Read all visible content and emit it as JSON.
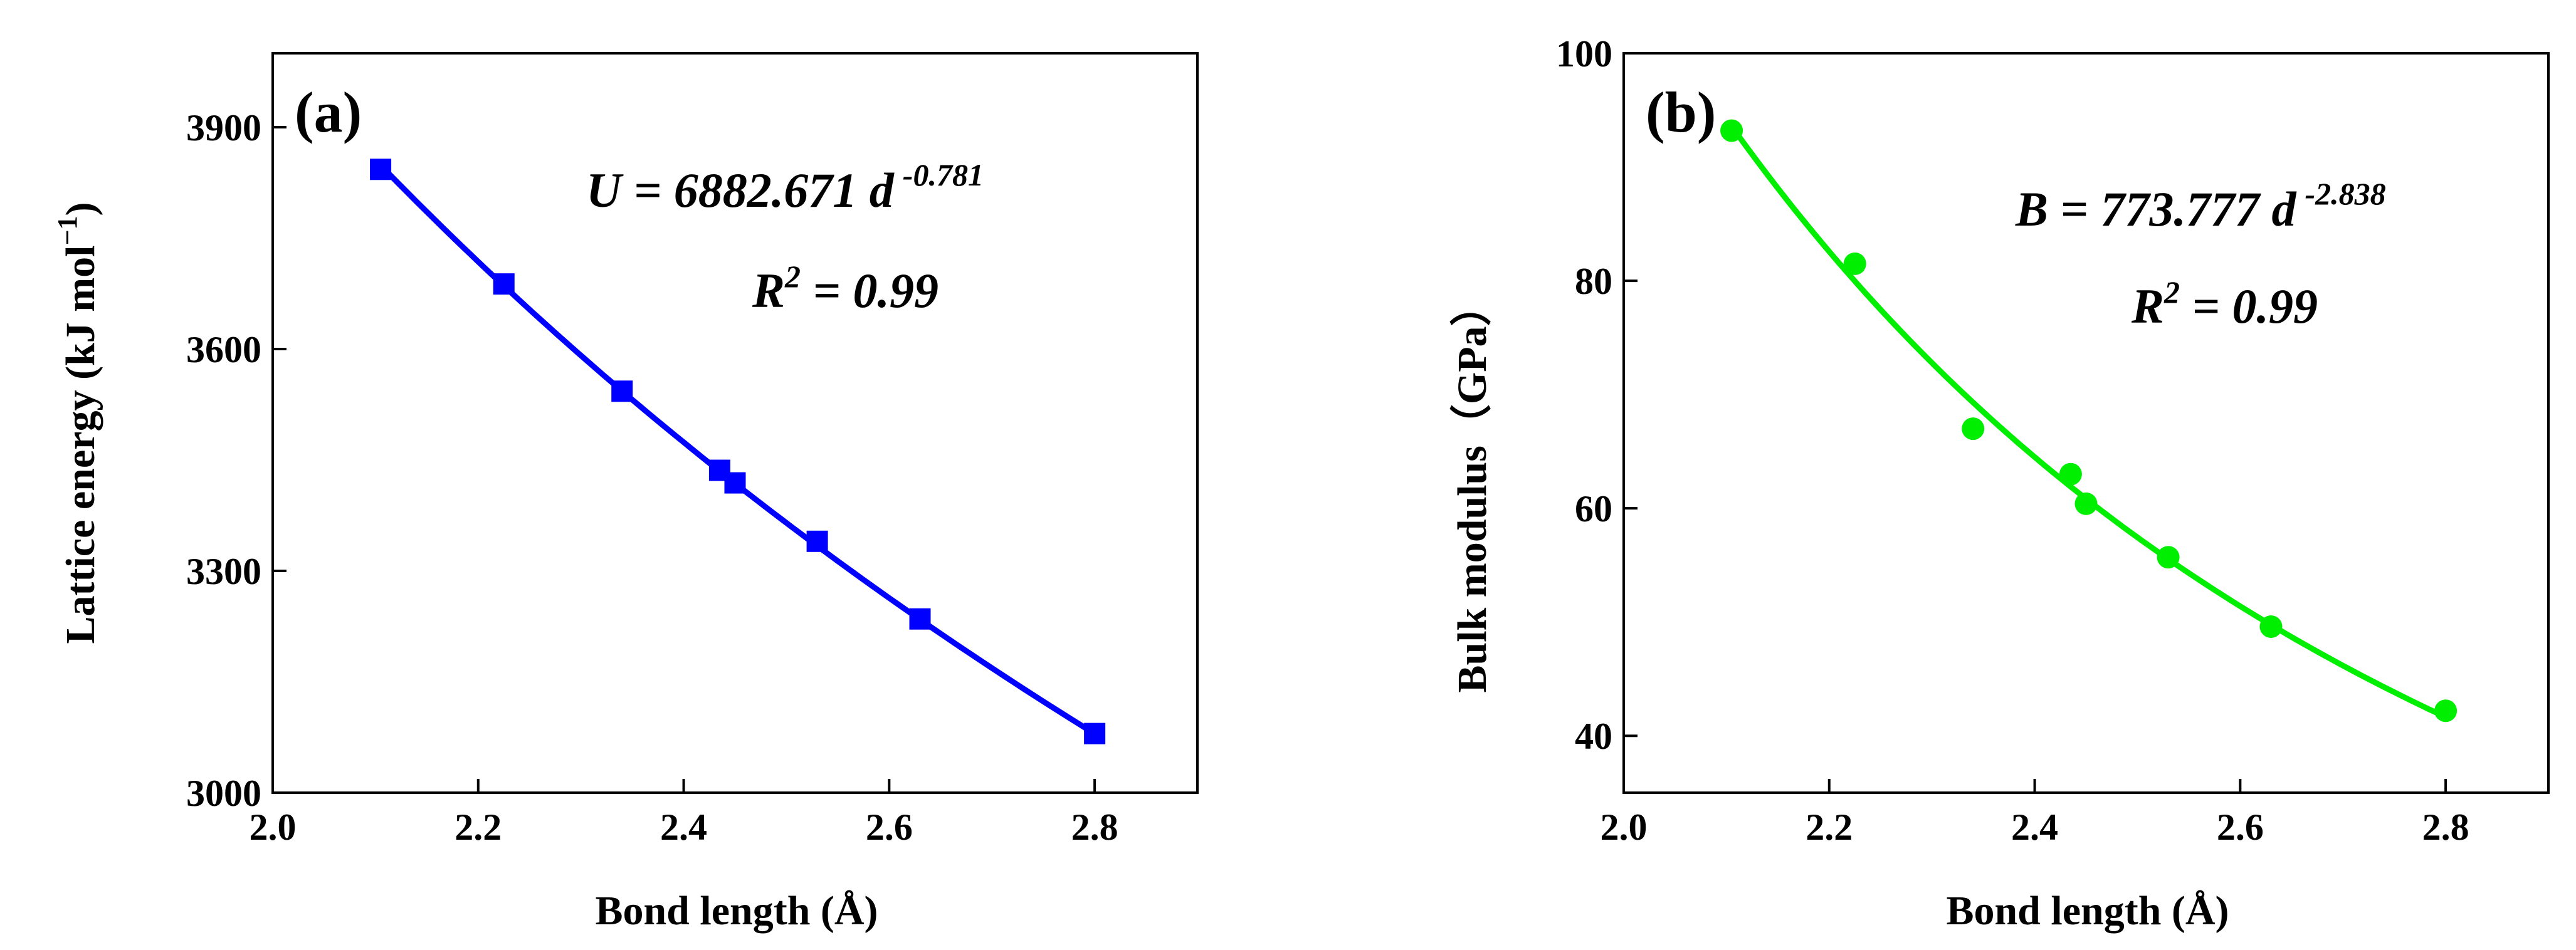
{
  "chart_data": [
    {
      "type": "line",
      "panel": "(a)",
      "title": "",
      "xlabel": "Bond length (Å)",
      "ylabel_main": "Lattice energy (kJ mol",
      "ylabel_sup": "−1",
      "ylabel_close": ")",
      "xlim": [
        2.0,
        2.9
      ],
      "ylim": [
        3000,
        4000
      ],
      "xticks": [
        2.0,
        2.2,
        2.4,
        2.6,
        2.8
      ],
      "xtick_labels": [
        "2.0",
        "2.2",
        "2.4",
        "2.6",
        "2.8"
      ],
      "yticks": [
        3000,
        3300,
        3600,
        3900
      ],
      "ytick_labels": [
        "3000",
        "3300",
        "3600",
        "3900"
      ],
      "color": "#0000ff",
      "marker": "square",
      "fit": {
        "a": 6882.671,
        "b": -0.781,
        "x_range": [
          2.105,
          2.8
        ]
      },
      "equation": {
        "lhs": "U",
        "rest": " = 6882.671 d",
        "exp": "-0.781"
      },
      "r2": {
        "lhs": "R",
        "sup": "2",
        "rest": " = 0.99"
      },
      "series": [
        {
          "name": "Lattice energy",
          "x": [
            2.105,
            2.225,
            2.34,
            2.435,
            2.45,
            2.53,
            2.63,
            2.8
          ],
          "y": [
            3843,
            3688,
            3543,
            3436,
            3419,
            3340,
            3235,
            3080
          ]
        }
      ]
    },
    {
      "type": "line",
      "panel": "(b)",
      "title": "",
      "xlabel": "Bond length (Å)",
      "ylabel": "Bulk modulus（GPa）",
      "xlim": [
        2.0,
        2.9
      ],
      "ylim": [
        35,
        100
      ],
      "xticks": [
        2.0,
        2.2,
        2.4,
        2.6,
        2.8
      ],
      "xtick_labels": [
        "2.0",
        "2.2",
        "2.4",
        "2.6",
        "2.8"
      ],
      "yticks": [
        40,
        60,
        80,
        100
      ],
      "ytick_labels": [
        "40",
        "60",
        "80",
        "100"
      ],
      "color": "#00ee00",
      "marker": "circle",
      "fit": {
        "a": 773.777,
        "b": -2.838,
        "x_range": [
          2.105,
          2.8
        ]
      },
      "equation": {
        "lhs": "B",
        "rest": " = 773.777 d",
        "exp": "-2.838"
      },
      "r2": {
        "lhs": "R",
        "sup": "2",
        "rest": " = 0.99"
      },
      "series": [
        {
          "name": "Bulk modulus",
          "x": [
            2.105,
            2.225,
            2.34,
            2.435,
            2.45,
            2.53,
            2.63,
            2.8
          ],
          "y": [
            93.2,
            81.5,
            67.0,
            63.0,
            60.4,
            55.7,
            49.6,
            42.2
          ]
        }
      ]
    }
  ]
}
